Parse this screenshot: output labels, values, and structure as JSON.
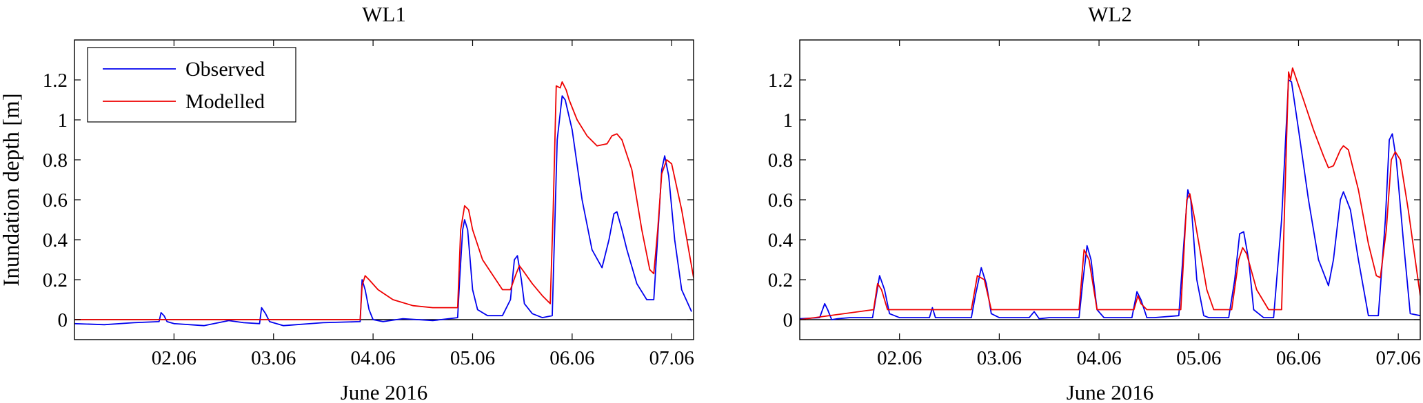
{
  "chart_data": [
    {
      "type": "line",
      "title": "WL1",
      "xlabel": "June 2016",
      "ylabel": "Inundation depth [m]",
      "xlim": [
        1.0,
        7.22
      ],
      "ylim": [
        -0.1,
        1.4
      ],
      "xticks": [
        2,
        3,
        4,
        5,
        6,
        7
      ],
      "xtick_labels": [
        "02.06",
        "03.06",
        "04.06",
        "05.06",
        "06.06",
        "07.06"
      ],
      "yticks": [
        0,
        0.2,
        0.4,
        0.6,
        0.8,
        1,
        1.2
      ],
      "ytick_labels": [
        "0",
        "0.2",
        "0.4",
        "0.6",
        "0.8",
        "1",
        "1.2"
      ],
      "grid": false,
      "legend": "top-left",
      "zero_line": true,
      "series": [
        {
          "name": "Observed",
          "color": "#0000ee",
          "x": [
            1.0,
            1.3,
            1.6,
            1.85,
            1.87,
            1.9,
            1.93,
            2.0,
            2.3,
            2.55,
            2.7,
            2.86,
            2.88,
            2.92,
            2.96,
            3.1,
            3.5,
            3.87,
            3.89,
            3.92,
            3.96,
            4.0,
            4.1,
            4.3,
            4.6,
            4.85,
            4.87,
            4.9,
            4.92,
            4.95,
            5.0,
            5.05,
            5.15,
            5.3,
            5.38,
            5.42,
            5.45,
            5.49,
            5.52,
            5.6,
            5.7,
            5.8,
            5.85,
            5.9,
            5.93,
            6.0,
            6.1,
            6.2,
            6.3,
            6.37,
            6.42,
            6.45,
            6.5,
            6.55,
            6.65,
            6.75,
            6.82,
            6.87,
            6.9,
            6.93,
            6.97,
            7.03,
            7.1,
            7.2
          ],
          "y": [
            -0.02,
            -0.025,
            -0.015,
            -0.01,
            0.035,
            0.02,
            -0.01,
            -0.02,
            -0.03,
            -0.005,
            -0.015,
            -0.02,
            0.06,
            0.03,
            -0.01,
            -0.03,
            -0.015,
            -0.01,
            0.2,
            0.15,
            0.05,
            0.0,
            -0.01,
            0.005,
            -0.005,
            0.01,
            0.2,
            0.45,
            0.5,
            0.45,
            0.15,
            0.05,
            0.02,
            0.02,
            0.1,
            0.3,
            0.32,
            0.2,
            0.08,
            0.03,
            0.01,
            0.02,
            0.9,
            1.12,
            1.1,
            0.95,
            0.6,
            0.35,
            0.26,
            0.4,
            0.53,
            0.54,
            0.45,
            0.35,
            0.18,
            0.1,
            0.1,
            0.5,
            0.75,
            0.82,
            0.72,
            0.4,
            0.15,
            0.04
          ]
        },
        {
          "name": "Modelled",
          "color": "#ee0000",
          "x": [
            1.0,
            3.87,
            3.89,
            3.92,
            3.96,
            4.05,
            4.2,
            4.4,
            4.6,
            4.8,
            4.85,
            4.88,
            4.92,
            4.96,
            5.0,
            5.1,
            5.3,
            5.38,
            5.43,
            5.47,
            5.5,
            5.6,
            5.7,
            5.78,
            5.81,
            5.84,
            5.88,
            5.9,
            5.94,
            5.97,
            6.05,
            6.15,
            6.25,
            6.35,
            6.4,
            6.45,
            6.5,
            6.6,
            6.7,
            6.78,
            6.82,
            6.86,
            6.9,
            6.95,
            7.0,
            7.1,
            7.22
          ],
          "y": [
            0.0,
            0.0,
            0.17,
            0.22,
            0.2,
            0.15,
            0.1,
            0.07,
            0.06,
            0.06,
            0.06,
            0.45,
            0.57,
            0.55,
            0.45,
            0.3,
            0.15,
            0.15,
            0.22,
            0.27,
            0.25,
            0.18,
            0.12,
            0.08,
            0.55,
            1.17,
            1.16,
            1.19,
            1.15,
            1.1,
            1.0,
            0.92,
            0.87,
            0.88,
            0.92,
            0.93,
            0.9,
            0.75,
            0.45,
            0.25,
            0.23,
            0.45,
            0.73,
            0.8,
            0.78,
            0.55,
            0.21
          ]
        }
      ]
    },
    {
      "type": "line",
      "title": "WL2",
      "xlabel": "June 2016",
      "ylabel": "",
      "xlim": [
        1.0,
        7.22
      ],
      "ylim": [
        -0.1,
        1.4
      ],
      "xticks": [
        2,
        3,
        4,
        5,
        6,
        7
      ],
      "xtick_labels": [
        "02.06",
        "03.06",
        "04.06",
        "05.06",
        "06.06",
        "07.06"
      ],
      "yticks": [
        0,
        0.2,
        0.4,
        0.6,
        0.8,
        1,
        1.2
      ],
      "ytick_labels": [
        "0",
        "0.2",
        "0.4",
        "0.6",
        "0.8",
        "1",
        "1.2"
      ],
      "grid": false,
      "legend": "none",
      "zero_line": true,
      "series": [
        {
          "name": "Observed",
          "color": "#0000ee",
          "x": [
            1.0,
            1.2,
            1.25,
            1.28,
            1.32,
            1.38,
            1.5,
            1.73,
            1.76,
            1.8,
            1.85,
            1.9,
            2.0,
            2.3,
            2.33,
            2.36,
            2.4,
            2.72,
            2.76,
            2.82,
            2.87,
            2.92,
            3.0,
            3.3,
            3.35,
            3.4,
            3.5,
            3.8,
            3.84,
            3.88,
            3.92,
            3.98,
            4.05,
            4.33,
            4.38,
            4.42,
            4.48,
            4.55,
            4.8,
            4.86,
            4.89,
            4.92,
            4.98,
            5.05,
            5.1,
            5.3,
            5.36,
            5.41,
            5.45,
            5.5,
            5.55,
            5.65,
            5.75,
            5.83,
            5.9,
            5.93,
            6.0,
            6.1,
            6.2,
            6.3,
            6.35,
            6.42,
            6.45,
            6.52,
            6.6,
            6.7,
            6.8,
            6.87,
            6.91,
            6.94,
            6.98,
            7.05,
            7.12,
            7.22
          ],
          "y": [
            0.005,
            0.01,
            0.08,
            0.05,
            0.0,
            0.005,
            0.01,
            0.01,
            0.1,
            0.22,
            0.15,
            0.03,
            0.01,
            0.01,
            0.06,
            0.01,
            0.01,
            0.01,
            0.12,
            0.26,
            0.18,
            0.03,
            0.01,
            0.01,
            0.04,
            0.005,
            0.01,
            0.01,
            0.2,
            0.37,
            0.3,
            0.05,
            0.01,
            0.01,
            0.14,
            0.1,
            0.01,
            0.01,
            0.02,
            0.45,
            0.65,
            0.6,
            0.2,
            0.02,
            0.01,
            0.01,
            0.2,
            0.43,
            0.44,
            0.3,
            0.05,
            0.01,
            0.01,
            0.5,
            1.2,
            1.19,
            0.95,
            0.6,
            0.3,
            0.17,
            0.3,
            0.6,
            0.64,
            0.55,
            0.3,
            0.02,
            0.02,
            0.5,
            0.9,
            0.93,
            0.8,
            0.4,
            0.03,
            0.02
          ]
        },
        {
          "name": "Modelled",
          "color": "#ee0000",
          "x": [
            1.0,
            1.74,
            1.78,
            1.82,
            1.88,
            2.72,
            2.78,
            2.85,
            2.92,
            3.8,
            3.85,
            3.9,
            3.98,
            4.35,
            4.39,
            4.42,
            4.48,
            4.82,
            4.88,
            4.91,
            4.96,
            5.08,
            5.15,
            5.33,
            5.4,
            5.44,
            5.48,
            5.58,
            5.7,
            5.83,
            5.9,
            5.92,
            5.94,
            6.05,
            6.15,
            6.25,
            6.3,
            6.35,
            6.42,
            6.45,
            6.5,
            6.6,
            6.7,
            6.78,
            6.82,
            6.88,
            6.93,
            6.97,
            7.02,
            7.1,
            7.22
          ],
          "y": [
            0.0,
            0.05,
            0.18,
            0.15,
            0.05,
            0.05,
            0.22,
            0.2,
            0.05,
            0.05,
            0.35,
            0.3,
            0.05,
            0.05,
            0.12,
            0.08,
            0.05,
            0.05,
            0.6,
            0.63,
            0.5,
            0.15,
            0.05,
            0.05,
            0.3,
            0.36,
            0.33,
            0.15,
            0.05,
            0.05,
            1.24,
            1.2,
            1.26,
            1.1,
            0.95,
            0.82,
            0.76,
            0.77,
            0.85,
            0.87,
            0.85,
            0.65,
            0.38,
            0.22,
            0.21,
            0.45,
            0.8,
            0.84,
            0.8,
            0.55,
            0.12
          ]
        }
      ]
    }
  ]
}
